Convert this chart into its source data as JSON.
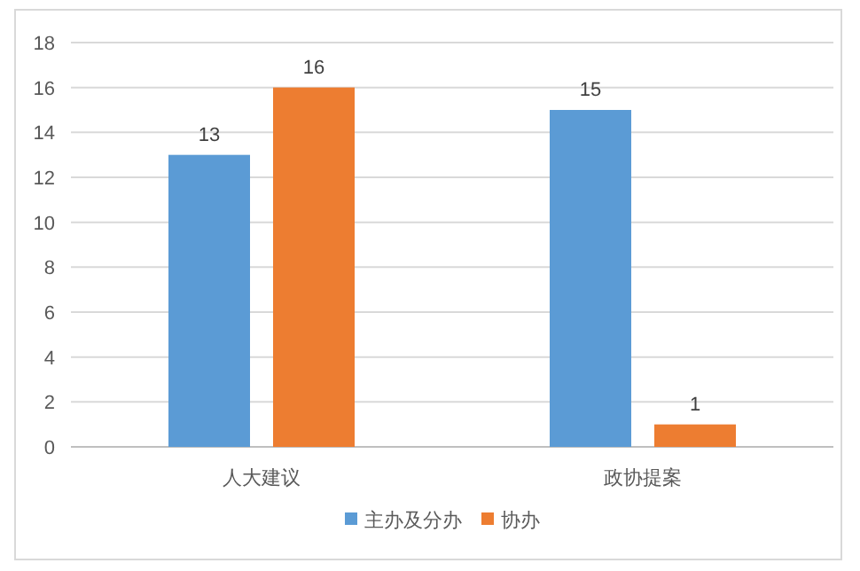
{
  "chart_data": {
    "type": "bar",
    "categories": [
      "人大建议",
      "政协提案"
    ],
    "series": [
      {
        "name": "主办及分办",
        "color": "#5b9bd5",
        "values": [
          13,
          15
        ]
      },
      {
        "name": "协办",
        "color": "#ed7d31",
        "values": [
          16,
          1
        ]
      }
    ],
    "ylim": [
      0,
      18
    ],
    "yticks": [
      0,
      2,
      4,
      6,
      8,
      10,
      12,
      14,
      16,
      18
    ],
    "grid": "y",
    "legend": "bottom",
    "data_labels": true
  }
}
